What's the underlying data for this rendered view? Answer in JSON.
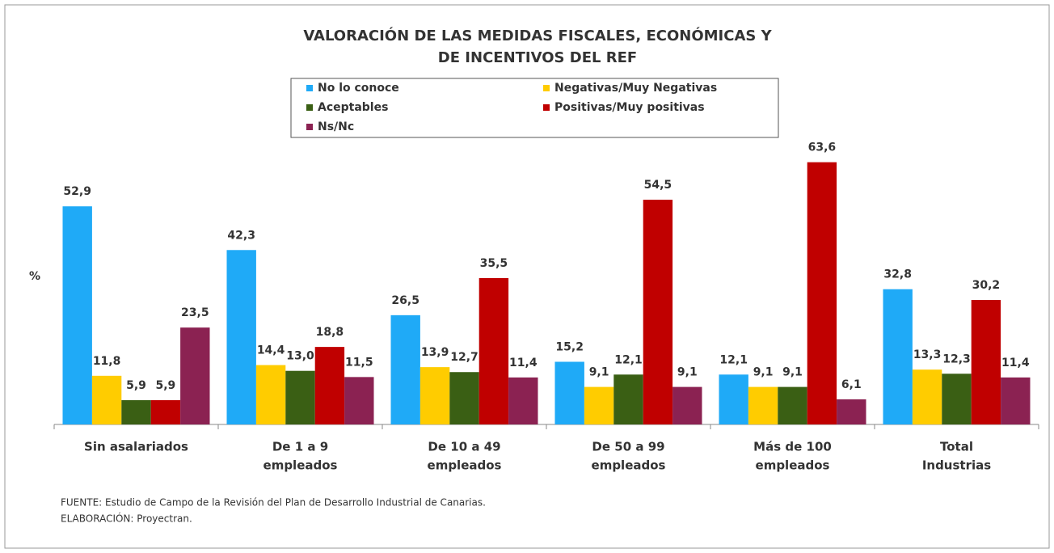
{
  "chart_data": {
    "type": "bar",
    "title": [
      "VALORACIÓN DE LAS MEDIDAS FISCALES, ECONÓMICAS Y",
      "DE INCENTIVOS DEL REF"
    ],
    "y_label": "%",
    "categories": [
      [
        "Sin asalariados"
      ],
      [
        "De 1 a 9",
        "empleados"
      ],
      [
        "De 10 a 49",
        "empleados"
      ],
      [
        "De 50 a 99",
        "empleados"
      ],
      [
        "Más de 100",
        "empleados"
      ],
      [
        "Total",
        "Industrias"
      ]
    ],
    "series": [
      {
        "name": "No lo conoce",
        "color": "#1faaf7",
        "values": [
          52.9,
          42.3,
          26.5,
          15.2,
          12.1,
          32.8
        ],
        "value_labels": [
          "52,9",
          "42,3",
          "26,5",
          "15,2",
          "12,1",
          "32,8"
        ]
      },
      {
        "name": "Negativas/Muy Negativas",
        "color": "#ffcc00",
        "values": [
          11.8,
          14.4,
          13.9,
          9.1,
          9.1,
          13.3
        ],
        "value_labels": [
          "11,8",
          "14,4",
          "13,9",
          "9,1",
          "9,1",
          "13,3"
        ]
      },
      {
        "name": "Aceptables",
        "color": "#3a5f14",
        "values": [
          5.9,
          13.0,
          12.7,
          12.1,
          9.1,
          12.3
        ],
        "value_labels": [
          "5,9",
          "13,0",
          "12,7",
          "12,1",
          "9,1",
          "12,3"
        ]
      },
      {
        "name": "Positivas/Muy positivas",
        "color": "#c00000",
        "values": [
          5.9,
          18.8,
          35.5,
          54.5,
          63.6,
          30.2
        ],
        "value_labels": [
          "5,9",
          "18,8",
          "35,5",
          "54,5",
          "63,6",
          "30,2"
        ]
      },
      {
        "name": "Ns/Nc",
        "color": "#8b2252",
        "values": [
          23.5,
          11.5,
          11.4,
          9.1,
          6.1,
          11.4
        ],
        "value_labels": [
          "23,5",
          "11,5",
          "11,4",
          "9,1",
          "6,1",
          "11,4"
        ]
      }
    ],
    "ylim": [
      0,
      70
    ],
    "notes": [
      "FUENTE: Estudio de Campo de la Revisión del Plan de Desarrollo Industrial de Canarias.",
      "ELABORACIÓN: Proyectran."
    ]
  }
}
